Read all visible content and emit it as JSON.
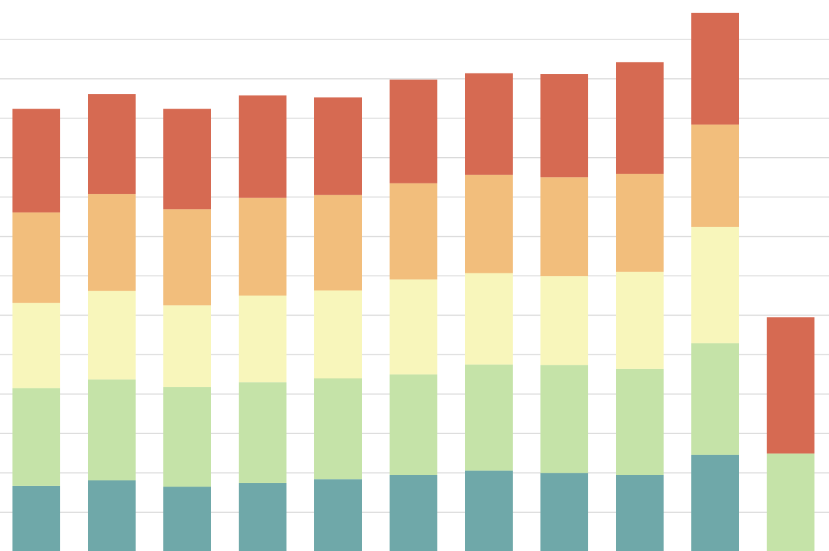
{
  "chart_data": {
    "type": "stacked_bar",
    "categories": [
      null,
      null,
      null,
      null,
      null,
      null,
      null,
      null,
      null,
      null,
      null
    ],
    "series": [
      {
        "color": "#6fa8a9",
        "values": [
          1.67,
          1.81,
          1.65,
          1.74,
          1.84,
          1.95,
          2.06,
          2.0,
          1.95,
          2.46,
          null
        ]
      },
      {
        "color": "#c5e3a8",
        "values": [
          2.48,
          2.56,
          2.53,
          2.56,
          2.56,
          2.55,
          2.69,
          2.74,
          2.69,
          2.83,
          2.49
        ]
      },
      {
        "color": "#f8f6bb",
        "values": [
          2.16,
          2.25,
          2.07,
          2.2,
          2.23,
          2.41,
          2.32,
          2.25,
          2.46,
          2.95,
          null
        ]
      },
      {
        "color": "#f2be7c",
        "values": [
          2.3,
          2.46,
          2.44,
          2.48,
          2.42,
          2.44,
          2.49,
          2.51,
          2.49,
          2.6,
          null
        ]
      },
      {
        "color": "#d66a52",
        "values": [
          2.63,
          2.53,
          2.55,
          2.6,
          2.48,
          2.63,
          2.58,
          2.62,
          2.83,
          2.83,
          3.46
        ]
      }
    ],
    "ylim": [
      0,
      14
    ],
    "yticks": [
      1,
      2,
      3,
      4,
      5,
      6,
      7,
      8,
      9,
      10,
      11,
      12,
      13
    ],
    "grid": true
  }
}
